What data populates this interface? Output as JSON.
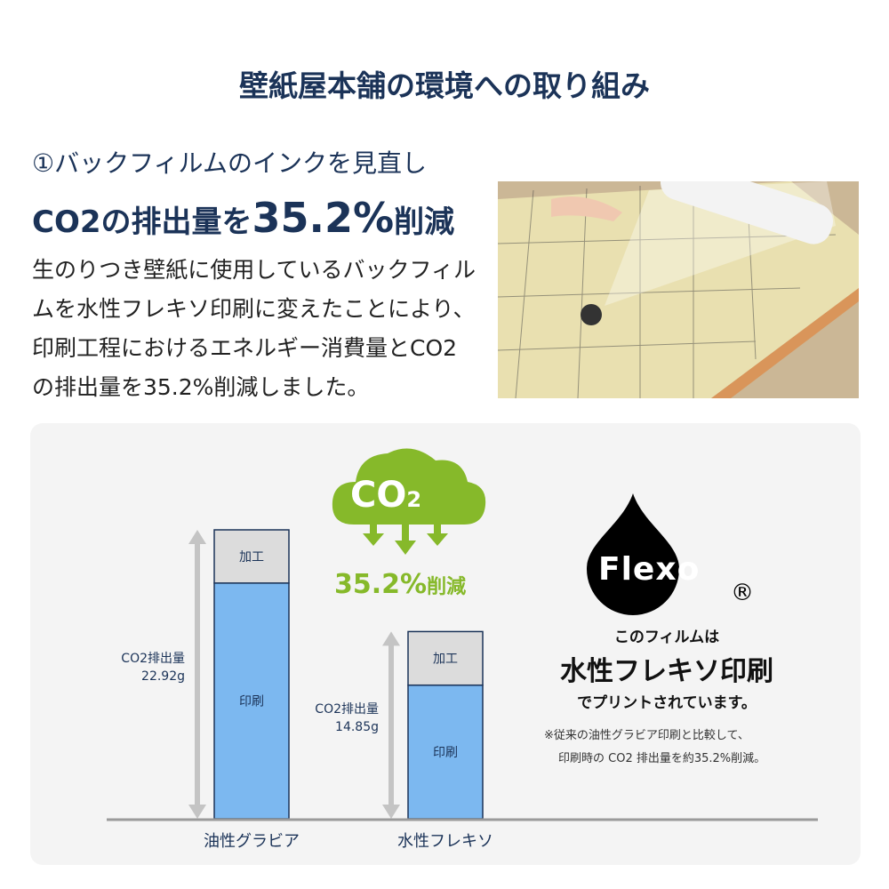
{
  "title": "壁紙屋本舗の環境への取り組み",
  "heading": {
    "line1": "①バックフィルムのインクを見直し",
    "line2_prefix": "CO2の排出量を",
    "line2_value": "35.2%",
    "line2_suffix": "削減"
  },
  "description": "生のりつき壁紙に使用しているバックフィルムを水性フレキソ印刷に変えたことにより、印刷工程におけるエネルギー消費量とCO2の排出量を35.2%削減しました。",
  "photo": {
    "alt": "wallpaper back film roll photo"
  },
  "cloud": {
    "text": "CO",
    "sub": "2",
    "reduction_value": "35.2%",
    "reduction_label": "削減"
  },
  "flexo": {
    "logo_text": "Flexo",
    "registered": "®",
    "line1": "このフィルムは",
    "line2": "水性フレキソ印刷",
    "line3": "でプリントされています。",
    "note1": "※従来の油性グラビア印刷と比較して、",
    "note2": "印刷時の CO2 排出量を約35.2%削減。"
  },
  "colors": {
    "navy": "#1b3358",
    "green": "#86b92a",
    "print_bar": "#7cb8f0",
    "process_bar": "#dcdcdc"
  },
  "chart_data": {
    "type": "bar",
    "stacked": true,
    "categories": [
      "油性グラビア",
      "水性フレキソ"
    ],
    "series": [
      {
        "name": "印刷",
        "values": [
          18.7,
          10.6
        ]
      },
      {
        "name": "加工",
        "values": [
          4.22,
          4.25
        ]
      }
    ],
    "totals": [
      22.92,
      14.85
    ],
    "total_labels": [
      {
        "label": "CO2排出量",
        "value": "22.92g"
      },
      {
        "label": "CO2排出量",
        "value": "14.85g"
      }
    ],
    "ylim": [
      0,
      22.92
    ]
  }
}
